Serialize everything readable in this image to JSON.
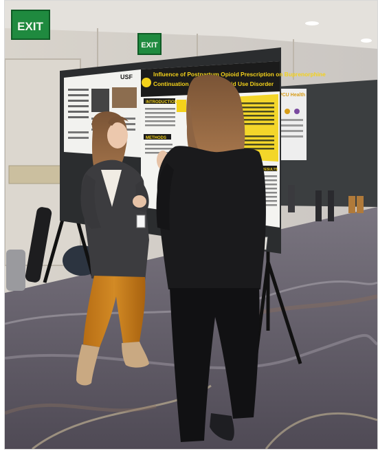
{
  "signs": {
    "exit_left": "EXIT",
    "exit_center": "EXIT"
  },
  "poster": {
    "title_line1": "Influence of Postpartum Opioid Prescription on Buprenorphine",
    "title_line2": "Continuation Among ... Opioid Use Disorder",
    "section_intro": "INTRODUCTION",
    "section_methods": "METHODS",
    "section_results": "RESULTS",
    "left_logo": "USF"
  },
  "side_poster": {
    "label": "VCU Health"
  },
  "colors": {
    "poster_header": "#1b1b1b",
    "poster_title": "#f4d21b",
    "exit_sign": "#1f8a3f",
    "carpet": "#6b6970",
    "pants": "#c47a1b",
    "blazer_black": "#1a1a1c"
  }
}
